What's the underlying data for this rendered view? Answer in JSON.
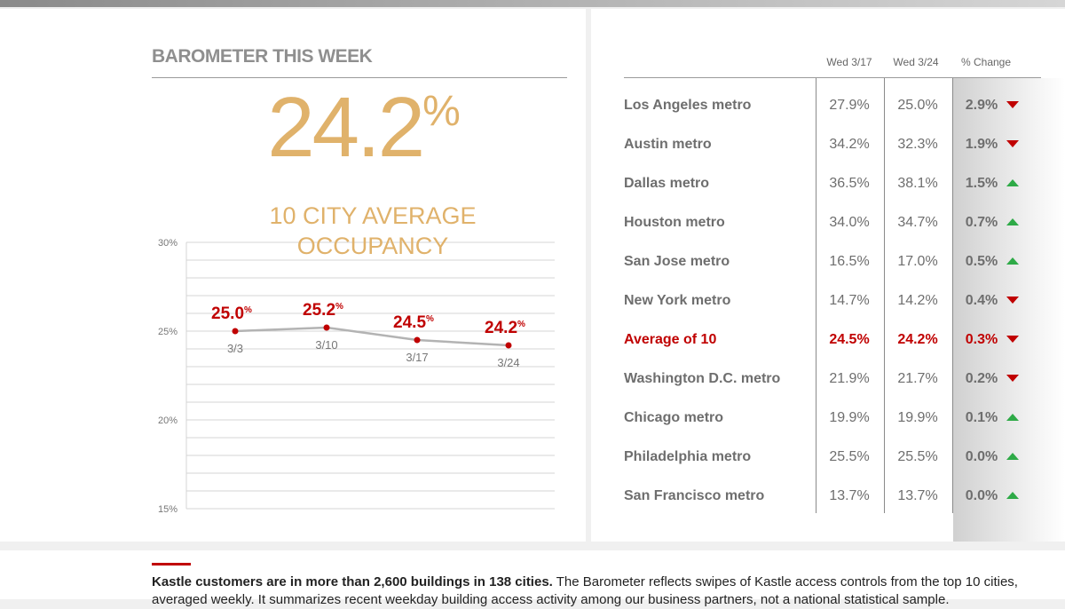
{
  "title": "BAROMETER THIS WEEK",
  "headline": {
    "value": "24.2",
    "unit": "%",
    "label_line1": "10 CITY AVERAGE",
    "label_line2": "OCCUPANCY"
  },
  "chart_data": {
    "type": "line",
    "x": [
      "3/3",
      "3/10",
      "3/17",
      "3/24"
    ],
    "values": [
      25.0,
      25.2,
      24.5,
      24.2
    ],
    "data_labels": [
      "25.0",
      "25.2",
      "24.5",
      "24.2"
    ],
    "data_label_unit": "%",
    "ylim": [
      15,
      30
    ],
    "yticks": [
      "30%",
      "25%",
      "20%",
      "15%"
    ],
    "grid": true,
    "colors": {
      "line": "#b3b3b3",
      "marker": "#c00000",
      "label": "#c00000"
    }
  },
  "table": {
    "columns": [
      "Wed 3/17",
      "Wed 3/24",
      "% Change"
    ],
    "rows": [
      {
        "city": "Los Angeles metro",
        "a": "27.9%",
        "b": "25.0%",
        "change": "2.9%",
        "dir": "down"
      },
      {
        "city": "Austin metro",
        "a": "34.2%",
        "b": "32.3%",
        "change": "1.9%",
        "dir": "down"
      },
      {
        "city": "Dallas metro",
        "a": "36.5%",
        "b": "38.1%",
        "change": "1.5%",
        "dir": "up"
      },
      {
        "city": "Houston metro",
        "a": "34.0%",
        "b": "34.7%",
        "change": "0.7%",
        "dir": "up"
      },
      {
        "city": "San Jose metro",
        "a": "16.5%",
        "b": "17.0%",
        "change": "0.5%",
        "dir": "up"
      },
      {
        "city": "New York metro",
        "a": "14.7%",
        "b": "14.2%",
        "change": "0.4%",
        "dir": "down"
      },
      {
        "city": "Average of 10",
        "a": "24.5%",
        "b": "24.2%",
        "change": "0.3%",
        "dir": "down",
        "highlight": true
      },
      {
        "city": "Washington D.C. metro",
        "a": "21.9%",
        "b": "21.7%",
        "change": "0.2%",
        "dir": "down"
      },
      {
        "city": "Chicago metro",
        "a": "19.9%",
        "b": "19.9%",
        "change": "0.1%",
        "dir": "up"
      },
      {
        "city": "Philadelphia metro",
        "a": "25.5%",
        "b": "25.5%",
        "change": "0.0%",
        "dir": "up"
      },
      {
        "city": "San Francisco metro",
        "a": "13.7%",
        "b": "13.7%",
        "change": "0.0%",
        "dir": "up"
      }
    ]
  },
  "footnote": {
    "bold": "Kastle customers are in more than 2,600 buildings in 138 cities.",
    "text": "The Barometer reflects swipes of Kastle access controls from the top 10 cities, averaged weekly. It summarizes recent weekday building access activity among our business partners, not a national statistical sample."
  },
  "colors": {
    "accent": "#c00000",
    "gold": "#e0b26b",
    "up": "#2eaa47",
    "down": "#c00000"
  }
}
